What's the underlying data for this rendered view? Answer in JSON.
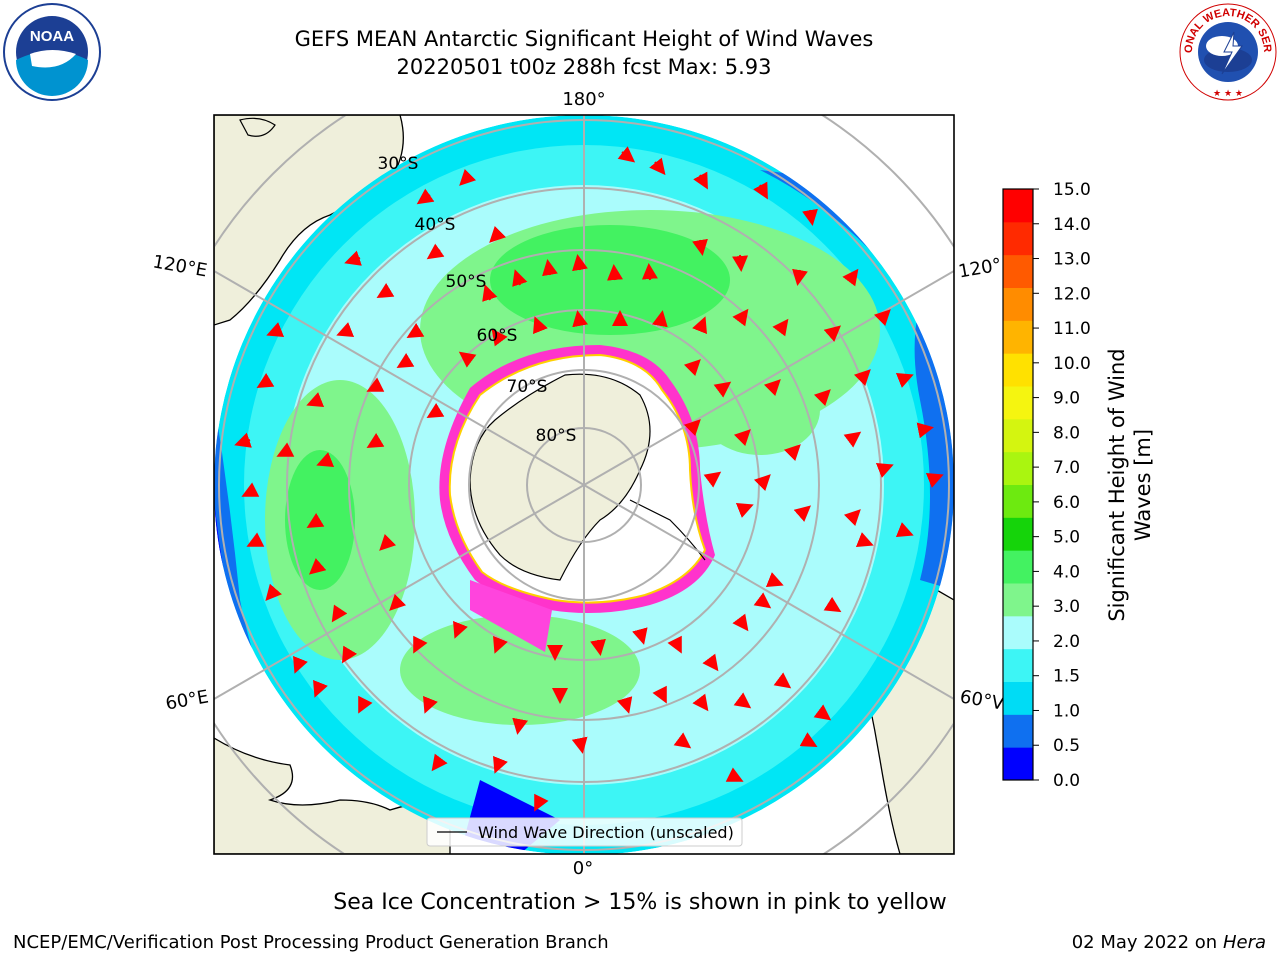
{
  "title": {
    "line1": "GEFS MEAN Antarctic Significant Height of Wind Waves",
    "line2": "20220501 t00z 288h fcst   Max: 5.93"
  },
  "logos": {
    "left": "NOAA",
    "right": "NATIONAL WEATHER SERVICE"
  },
  "map": {
    "longitude_labels": {
      "top": "180°",
      "bottom": "0°",
      "left_upper": "120°E",
      "left_lower": "60°E",
      "right_upper": "120°",
      "right_lower": "60°V"
    },
    "latitude_labels": [
      "30°S",
      "40°S",
      "50°S",
      "60°S",
      "70°S",
      "80°S"
    ],
    "legend": "Wind Wave Direction (unscaled)"
  },
  "colorbar": {
    "label_line1": "Significant Height of Wind",
    "label_line2": "Waves [m]",
    "ticks": [
      "0.0",
      "0.5",
      "1.0",
      "1.5",
      "2.0",
      "3.0",
      "4.0",
      "5.0",
      "6.0",
      "7.0",
      "8.0",
      "9.0",
      "10.0",
      "11.0",
      "12.0",
      "13.0",
      "14.0",
      "15.0"
    ],
    "colors": [
      "#0000ff",
      "#0f70f0",
      "#00dcf5",
      "#3df5f5",
      "#aafcfc",
      "#7ff58c",
      "#43f261",
      "#15d40a",
      "#6dea10",
      "#aaf510",
      "#d4f510",
      "#f5f510",
      "#ffe100",
      "#ffb400",
      "#ff8c00",
      "#ff5a00",
      "#ff2a00",
      "#ff0000"
    ]
  },
  "caption": "Sea Ice Concentration > 15% is shown in pink to yellow",
  "footer": {
    "left": "NCEP/EMC/Verification Post Processing Product Generation Branch",
    "right_date": "02 May 2022 on",
    "right_machine": "Hera"
  }
}
